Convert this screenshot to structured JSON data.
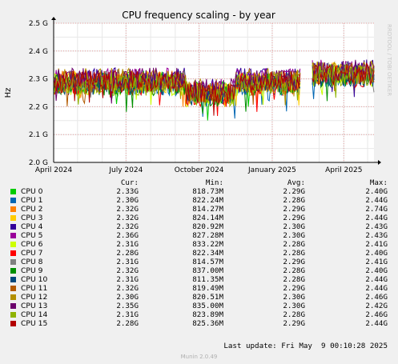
{
  "chart_data": {
    "type": "line",
    "title": "CPU frequency scaling - by year",
    "ylabel": "Hz",
    "watermark": "RRDTOOL / TOBI OETIKER",
    "ylim": [
      2.0,
      2.5
    ],
    "yticks": [
      {
        "value": 2.0,
        "label": "2.0 G"
      },
      {
        "value": 2.1,
        "label": "2.1 G"
      },
      {
        "value": 2.2,
        "label": "2.2 G"
      },
      {
        "value": 2.3,
        "label": "2.3 G"
      },
      {
        "value": 2.4,
        "label": "2.4 G"
      },
      {
        "value": 2.5,
        "label": "2.5 G"
      }
    ],
    "xlim": [
      "2024-04-01",
      "2025-05-09"
    ],
    "xticks": [
      {
        "value": "2024-04-01",
        "label": "April 2024"
      },
      {
        "value": "2024-07-01",
        "label": "July 2024"
      },
      {
        "value": "2024-10-01",
        "label": "October 2024"
      },
      {
        "value": "2025-01-01",
        "label": "January 2025"
      },
      {
        "value": "2025-04-01",
        "label": "April 2025"
      }
    ],
    "grid": true,
    "colors": {
      "background": "#f0f0f0",
      "plot": "#ffffff",
      "major_grid": "#e7a0a0",
      "minor_grid": "#e8e8e8",
      "axis": "#000000"
    },
    "series": [
      {
        "name": "CPU 0",
        "color": "#00cc00",
        "cur": "2.33G",
        "min": "818.73M",
        "avg": "2.29G",
        "max": "2.40G"
      },
      {
        "name": "CPU 1",
        "color": "#0066b3",
        "cur": "2.30G",
        "min": "822.24M",
        "avg": "2.28G",
        "max": "2.44G"
      },
      {
        "name": "CPU 2",
        "color": "#ff8000",
        "cur": "2.32G",
        "min": "814.27M",
        "avg": "2.29G",
        "max": "2.74G"
      },
      {
        "name": "CPU 3",
        "color": "#ffcc00",
        "cur": "2.32G",
        "min": "824.14M",
        "avg": "2.29G",
        "max": "2.44G"
      },
      {
        "name": "CPU 4",
        "color": "#330099",
        "cur": "2.32G",
        "min": "820.92M",
        "avg": "2.30G",
        "max": "2.43G"
      },
      {
        "name": "CPU 5",
        "color": "#990099",
        "cur": "2.36G",
        "min": "827.28M",
        "avg": "2.30G",
        "max": "2.43G"
      },
      {
        "name": "CPU 6",
        "color": "#ccff00",
        "cur": "2.31G",
        "min": "833.22M",
        "avg": "2.28G",
        "max": "2.41G"
      },
      {
        "name": "CPU 7",
        "color": "#ff0000",
        "cur": "2.28G",
        "min": "822.34M",
        "avg": "2.28G",
        "max": "2.40G"
      },
      {
        "name": "CPU 8",
        "color": "#808080",
        "cur": "2.31G",
        "min": "814.57M",
        "avg": "2.29G",
        "max": "2.41G"
      },
      {
        "name": "CPU 9",
        "color": "#008f00",
        "cur": "2.32G",
        "min": "837.00M",
        "avg": "2.28G",
        "max": "2.40G"
      },
      {
        "name": "CPU 10",
        "color": "#00487d",
        "cur": "2.31G",
        "min": "811.35M",
        "avg": "2.28G",
        "max": "2.44G"
      },
      {
        "name": "CPU 11",
        "color": "#b35a00",
        "cur": "2.32G",
        "min": "819.49M",
        "avg": "2.29G",
        "max": "2.44G"
      },
      {
        "name": "CPU 12",
        "color": "#b38f00",
        "cur": "2.30G",
        "min": "820.51M",
        "avg": "2.30G",
        "max": "2.46G"
      },
      {
        "name": "CPU 13",
        "color": "#6b006b",
        "cur": "2.35G",
        "min": "835.00M",
        "avg": "2.30G",
        "max": "2.42G"
      },
      {
        "name": "CPU 14",
        "color": "#8fb300",
        "cur": "2.31G",
        "min": "823.89M",
        "avg": "2.28G",
        "max": "2.46G"
      },
      {
        "name": "CPU 15",
        "color": "#b30000",
        "cur": "2.28G",
        "min": "825.36M",
        "avg": "2.29G",
        "max": "2.44G"
      }
    ]
  },
  "legend_headers": {
    "cur": "Cur:",
    "min": "Min:",
    "avg": "Avg:",
    "max": "Max:"
  },
  "last_update": "Last update: Fri May  9 00:10:28 2025",
  "munin_version": "Munin 2.0.49"
}
